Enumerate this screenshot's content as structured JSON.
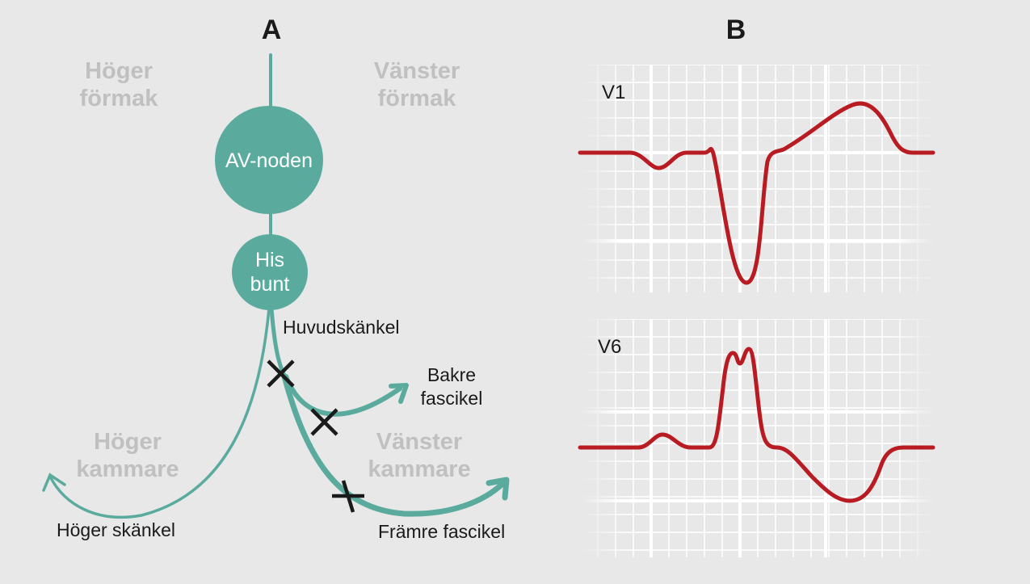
{
  "panels": {
    "a": "A",
    "b": "B"
  },
  "regions": {
    "right_atrium": [
      "Höger",
      "förmak"
    ],
    "left_atrium": [
      "Vänster",
      "förmak"
    ],
    "right_ventricle": [
      "Höger",
      "kammare"
    ],
    "left_ventricle": [
      "Vänster",
      "kammare"
    ]
  },
  "nodes": {
    "av_node": "AV-noden",
    "his_bundle": [
      "His",
      "bunt"
    ]
  },
  "labels": {
    "main_branch": "Huvudskänkel",
    "posterior_fascicle": [
      "Bakre",
      "fascikel"
    ],
    "right_branch": "Höger skänkel",
    "anterior_fascicle": "Främre fascikel"
  },
  "leads": {
    "v1": "V1",
    "v6": "V6"
  },
  "colors": {
    "background": "#e8e8e8",
    "conduction": "#5aab9e",
    "block_mark": "#1a1a1a",
    "ecg_trace": "#b81c22",
    "grid": "#ffffff",
    "region_text": "#c0c0c0"
  }
}
